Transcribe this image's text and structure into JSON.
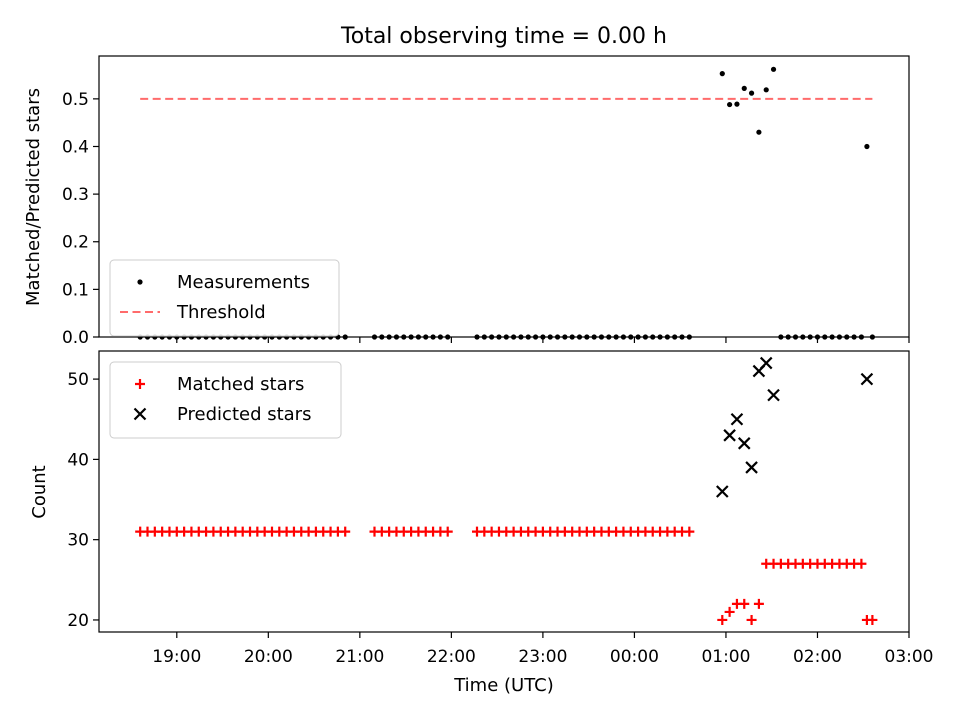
{
  "chart_data": [
    {
      "type": "scatter",
      "title": "Total observing time = 0.00 h",
      "ylabel": "Matched/Predicted stars",
      "xlabel": "",
      "x_unit": "hours since 00:00 UTC",
      "xlim": [
        -5.85,
        3.0
      ],
      "ylim": [
        0,
        0.59
      ],
      "yticks": [
        0.0,
        0.1,
        0.2,
        0.3,
        0.4,
        0.5
      ],
      "yticklabels": [
        "0.0",
        "0.1",
        "0.2",
        "0.3",
        "0.4",
        "0.5"
      ],
      "grid": false,
      "legend_position": "lower left",
      "series": [
        {
          "name": "Measurements",
          "color": "#000000",
          "marker": "dot",
          "x_start": -5.4,
          "x_step": 0.08,
          "y_runs": [
            {
              "count": 29,
              "value": 0.0
            },
            {
              "gap": 3
            },
            {
              "count": 11,
              "value": 0.0
            },
            {
              "gap": 3
            },
            {
              "count": 30,
              "value": 0.0
            }
          ],
          "points": [
            [
              0.96,
              0.553
            ],
            [
              1.04,
              0.488
            ],
            [
              1.12,
              0.489
            ],
            [
              1.2,
              0.522
            ],
            [
              1.28,
              0.512
            ],
            [
              1.36,
              0.43
            ],
            [
              1.44,
              0.519
            ],
            [
              1.52,
              0.562
            ],
            [
              1.6,
              0.0
            ],
            [
              1.68,
              0.0
            ],
            [
              1.76,
              0.0
            ],
            [
              1.84,
              0.0
            ],
            [
              1.92,
              0.0
            ],
            [
              2.0,
              0.0
            ],
            [
              2.08,
              0.0
            ],
            [
              2.16,
              0.0
            ],
            [
              2.24,
              0.0
            ],
            [
              2.32,
              0.0
            ],
            [
              2.4,
              0.0
            ],
            [
              2.48,
              0.0
            ],
            [
              2.54,
              0.4
            ],
            [
              2.6,
              0.0
            ]
          ]
        },
        {
          "name": "Threshold",
          "color": "#ff6b6b",
          "style": "dashed",
          "x": [
            -5.4,
            2.6
          ],
          "y": [
            0.5,
            0.5
          ]
        }
      ]
    },
    {
      "type": "scatter",
      "title": "",
      "ylabel": "Count",
      "xlabel": "Time (UTC)",
      "x_unit": "hours since 00:00 UTC",
      "xlim": [
        -5.85,
        3.0
      ],
      "ylim": [
        18.5,
        53.5
      ],
      "yticks": [
        20,
        30,
        40,
        50
      ],
      "yticklabels": [
        "20",
        "30",
        "40",
        "50"
      ],
      "xticks": [
        -5,
        -4,
        -3,
        -2,
        -1,
        0,
        1,
        2,
        3
      ],
      "xticklabels": [
        "19:00",
        "20:00",
        "21:00",
        "22:00",
        "23:00",
        "00:00",
        "01:00",
        "02:00",
        "03:00"
      ],
      "grid": false,
      "legend_position": "upper left",
      "series": [
        {
          "name": "Matched stars",
          "color": "#ff0000",
          "marker": "plus",
          "x_start": -5.4,
          "x_step": 0.08,
          "y_runs": [
            {
              "count": 29,
              "value": 31
            },
            {
              "gap": 3
            },
            {
              "count": 11,
              "value": 31
            },
            {
              "gap": 3
            },
            {
              "count": 30,
              "value": 31
            }
          ],
          "points": [
            [
              0.96,
              20
            ],
            [
              1.04,
              21
            ],
            [
              1.12,
              22
            ],
            [
              1.2,
              22
            ],
            [
              1.28,
              20
            ],
            [
              1.36,
              22
            ],
            [
              1.44,
              27
            ],
            [
              1.52,
              27
            ],
            [
              1.6,
              27
            ],
            [
              1.68,
              27
            ],
            [
              1.76,
              27
            ],
            [
              1.84,
              27
            ],
            [
              1.92,
              27
            ],
            [
              2.0,
              27
            ],
            [
              2.08,
              27
            ],
            [
              2.16,
              27
            ],
            [
              2.24,
              27
            ],
            [
              2.32,
              27
            ],
            [
              2.4,
              27
            ],
            [
              2.48,
              27
            ],
            [
              2.54,
              20
            ],
            [
              2.6,
              20
            ]
          ]
        },
        {
          "name": "Predicted stars",
          "color": "#000000",
          "marker": "x",
          "points": [
            [
              0.96,
              36
            ],
            [
              1.04,
              43
            ],
            [
              1.12,
              45
            ],
            [
              1.2,
              42
            ],
            [
              1.28,
              39
            ],
            [
              1.36,
              51
            ],
            [
              1.44,
              52
            ],
            [
              1.52,
              48
            ],
            [
              2.54,
              50
            ]
          ]
        }
      ]
    }
  ]
}
